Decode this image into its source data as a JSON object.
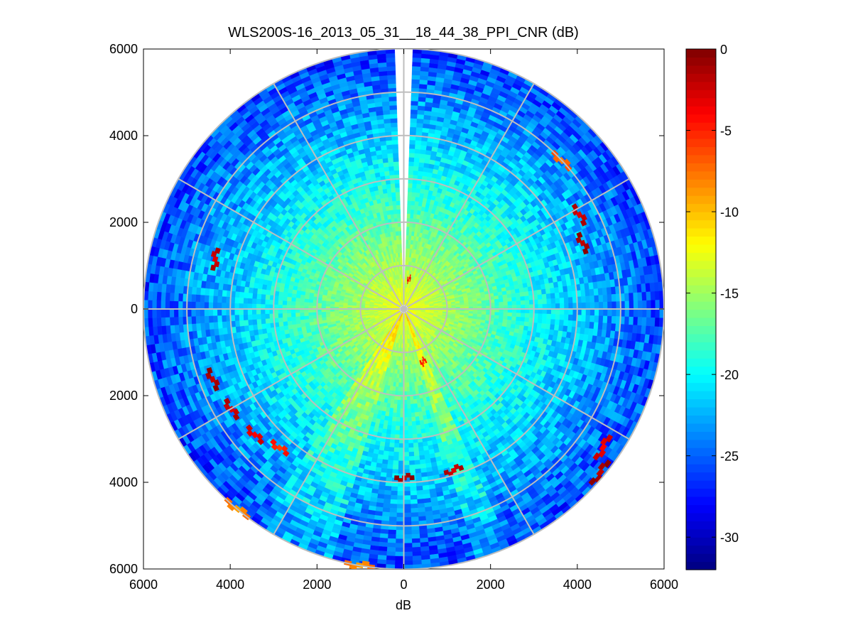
{
  "chart_data": {
    "type": "heatmap",
    "subtype": "polar-ppi",
    "title": "WLS200S-16_2013_05_31__18_44_38_PPI_CNR (dB)",
    "xlabel": "dB",
    "ylabel": "",
    "xlim": [
      -6000,
      6000
    ],
    "ylim": [
      -6000,
      6000
    ],
    "x_tick_labels": [
      "6000",
      "4000",
      "2000",
      "0",
      "2000",
      "4000",
      "6000"
    ],
    "x_tick_values": [
      -6000,
      -4000,
      -2000,
      0,
      2000,
      4000,
      6000
    ],
    "y_tick_labels": [
      "6000",
      "4000",
      "2000",
      "0",
      "2000",
      "4000",
      "6000"
    ],
    "y_tick_values": [
      6000,
      4000,
      2000,
      0,
      -2000,
      -4000,
      -6000
    ],
    "range_rings_m": [
      1000,
      2000,
      3000,
      4000,
      5000,
      6000
    ],
    "radial_spokes_deg": [
      0,
      30,
      60,
      90,
      120,
      150,
      180,
      210,
      240,
      270,
      300,
      330
    ],
    "max_range_m": 6000,
    "colorbar": {
      "colormap": "jet",
      "min": -32,
      "max": 0,
      "tick_values": [
        0,
        -5,
        -10,
        -15,
        -20,
        -25,
        -30
      ],
      "tick_labels": [
        "0",
        "-5",
        "-10",
        "-15",
        "-20",
        "-25",
        "-30"
      ]
    },
    "field_description": {
      "center_cnr_db": -12,
      "outer_cnr_db": -26,
      "blanked_sector_deg": [
        -1.5,
        1.5
      ]
    },
    "hotspots": [
      {
        "azimuth_deg": 62,
        "range_m": 4600,
        "cnr_db": -3
      },
      {
        "azimuth_deg": 70,
        "range_m": 4400,
        "cnr_db": -2
      },
      {
        "azimuth_deg": 47,
        "range_m": 5000,
        "cnr_db": -8
      },
      {
        "azimuth_deg": 285,
        "range_m": 4500,
        "cnr_db": -3
      },
      {
        "azimuth_deg": 250,
        "range_m": 4700,
        "cnr_db": -2
      },
      {
        "azimuth_deg": 240,
        "range_m": 4600,
        "cnr_db": -3
      },
      {
        "azimuth_deg": 230,
        "range_m": 4500,
        "cnr_db": -4
      },
      {
        "azimuth_deg": 222,
        "range_m": 4300,
        "cnr_db": -6
      },
      {
        "azimuth_deg": 180,
        "range_m": 3900,
        "cnr_db": -2
      },
      {
        "azimuth_deg": 163,
        "range_m": 3900,
        "cnr_db": -3
      },
      {
        "azimuth_deg": 130,
        "range_m": 5900,
        "cnr_db": -2
      },
      {
        "azimuth_deg": 125,
        "range_m": 5600,
        "cnr_db": -4
      },
      {
        "azimuth_deg": 220,
        "range_m": 6000,
        "cnr_db": -9
      },
      {
        "azimuth_deg": 190,
        "range_m": 6000,
        "cnr_db": -9
      },
      {
        "azimuth_deg": 10,
        "range_m": 700,
        "cnr_db": -5
      },
      {
        "azimuth_deg": 160,
        "range_m": 1300,
        "cnr_db": -6
      }
    ]
  }
}
